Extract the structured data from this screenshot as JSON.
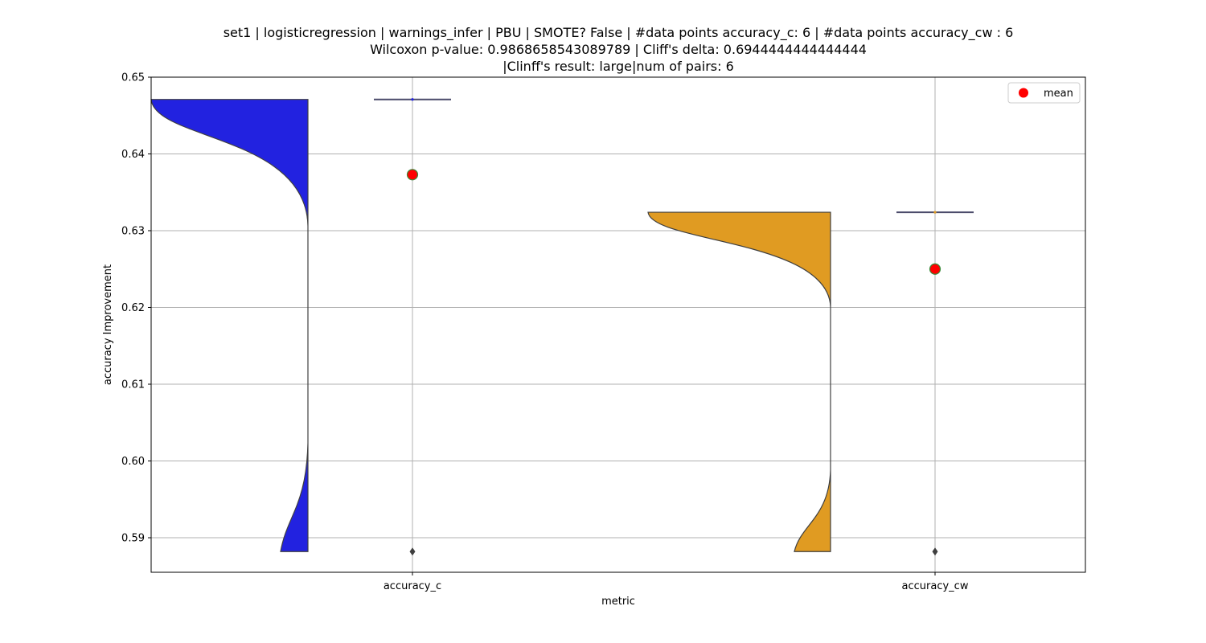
{
  "chart_data": {
    "type": "violin",
    "title_lines": [
      "set1 | logisticregression | warnings_infer | PBU | SMOTE? False | #data points accuracy_c: 6 | #data points accuracy_cw : 6",
      "Wilcoxon p-value: 0.9868658543089789 | Cliff's delta: 0.6944444444444444",
      "|Clinff's result: large|num of pairs: 6"
    ],
    "xlabel": "metric",
    "ylabel": "accuracy Improvement",
    "ylim": [
      0.5855,
      0.65
    ],
    "yticks": [
      0.59,
      0.6,
      0.61,
      0.62,
      0.63,
      0.64,
      0.65
    ],
    "ytick_labels": [
      "0.59",
      "0.60",
      "0.61",
      "0.62",
      "0.63",
      "0.64",
      "0.65"
    ],
    "categories": [
      "accuracy_c",
      "accuracy_cw"
    ],
    "grid": true,
    "legend": {
      "position": "top-right",
      "entries": [
        {
          "label": "mean",
          "color": "#ff0000"
        }
      ]
    },
    "series": [
      {
        "category": "accuracy_c",
        "color": "#2222e0",
        "min": 0.5882,
        "max": 0.6471,
        "median": 0.6471,
        "q1": 0.6471,
        "q3": 0.6471,
        "outlier": 0.5882,
        "mean": 0.6373
      },
      {
        "category": "accuracy_cw",
        "color": "#e09b22",
        "min": 0.5882,
        "max": 0.6324,
        "median": 0.6324,
        "q1": 0.6324,
        "q3": 0.6324,
        "outlier": 0.5882,
        "mean": 0.625
      }
    ]
  }
}
